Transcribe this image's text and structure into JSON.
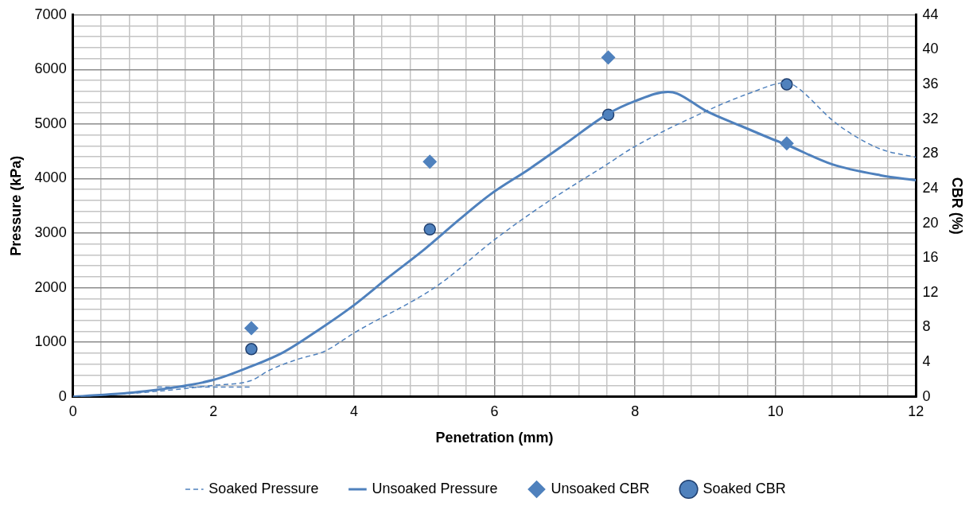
{
  "chart_data": {
    "type": "line",
    "xlabel": "Penetration (mm)",
    "ylabel": "Pressure (kPa)",
    "y2label": "CBR (%)",
    "xlim": [
      0,
      12
    ],
    "xticks": [
      0,
      {
        "value": 0.4,
        "label": null
      },
      {
        "value": 0.8,
        "label": null
      },
      {
        "value": 1.2,
        "label": null
      },
      {
        "value": 1.6,
        "label": null
      },
      2,
      {
        "value": 2.4,
        "label": null
      },
      {
        "value": 2.8,
        "label": null
      },
      {
        "value": 3.2,
        "label": null
      },
      {
        "value": 3.6,
        "label": null
      },
      4,
      {
        "value": 4.4,
        "label": null
      },
      {
        "value": 4.8,
        "label": null
      },
      {
        "value": 5.2,
        "label": null
      },
      {
        "value": 5.6,
        "label": null
      },
      6,
      {
        "value": 6.4,
        "label": null
      },
      {
        "value": 6.8,
        "label": null
      },
      {
        "value": 7.2,
        "label": null
      },
      {
        "value": 7.6,
        "label": null
      },
      8,
      {
        "value": 8.4,
        "label": null
      },
      {
        "value": 8.8,
        "label": null
      },
      {
        "value": 9.2,
        "label": null
      },
      {
        "value": 9.6,
        "label": null
      },
      10,
      {
        "value": 10.4,
        "label": null
      },
      {
        "value": 10.8,
        "label": null
      },
      {
        "value": 11.2,
        "label": null
      },
      {
        "value": 11.6,
        "label": null
      },
      12
    ],
    "ylim": [
      0,
      7000
    ],
    "yticks": [
      0,
      {
        "value": 200,
        "label": null
      },
      {
        "value": 400,
        "label": null
      },
      {
        "value": 600,
        "label": null
      },
      {
        "value": 800,
        "label": null
      },
      1000,
      {
        "value": 1200,
        "label": null
      },
      {
        "value": 1400,
        "label": null
      },
      {
        "value": 1600,
        "label": null
      },
      {
        "value": 1800,
        "label": null
      },
      2000,
      {
        "value": 2200,
        "label": null
      },
      {
        "value": 2400,
        "label": null
      },
      {
        "value": 2600,
        "label": null
      },
      {
        "value": 2800,
        "label": null
      },
      3000,
      {
        "value": 3200,
        "label": null
      },
      {
        "value": 3400,
        "label": null
      },
      {
        "value": 3600,
        "label": null
      },
      {
        "value": 3800,
        "label": null
      },
      4000,
      {
        "value": 4200,
        "label": null
      },
      {
        "value": 4400,
        "label": null
      },
      {
        "value": 4600,
        "label": null
      },
      {
        "value": 4800,
        "label": null
      },
      5000,
      {
        "value": 5200,
        "label": null
      },
      {
        "value": 5400,
        "label": null
      },
      {
        "value": 5600,
        "label": null
      },
      {
        "value": 5800,
        "label": null
      },
      6000,
      {
        "value": 6200,
        "label": null
      },
      {
        "value": 6400,
        "label": null
      },
      {
        "value": 6600,
        "label": null
      },
      {
        "value": 6800,
        "label": null
      },
      7000
    ],
    "y2lim": [
      0,
      44
    ],
    "y2ticks": [
      0,
      4,
      8,
      12,
      16,
      20,
      24,
      28,
      32,
      36,
      40,
      44
    ],
    "grid": true,
    "legend": "bottom",
    "series": [
      {
        "name": "Soaked Pressure",
        "type": "line",
        "line_style": "dashed",
        "marker": "none",
        "color": "#4f81bd",
        "x": [
          0,
          1,
          2,
          2.54,
          2.8,
          3.2,
          3.59,
          4,
          5.18,
          6,
          6.73,
          7.6,
          8,
          9,
          9.62,
          10.16,
          10.3,
          10.81,
          11.08,
          11.5,
          12
        ],
        "values": [
          0,
          80,
          210,
          300,
          490,
          690,
          840,
          1170,
          2030,
          2880,
          3550,
          4260,
          4590,
          5230,
          5560,
          5760,
          5680,
          5070,
          4820,
          4540,
          4390
        ]
      },
      {
        "name": "Unsoaked Pressure",
        "type": "line",
        "line_style": "solid",
        "marker": "none",
        "color": "#4f81bd",
        "x": [
          0,
          1,
          2,
          2.54,
          3,
          3.5,
          4,
          4.5,
          5,
          5.5,
          5.93,
          6.5,
          7,
          7.62,
          8,
          8.47,
          8.6,
          9,
          9.5,
          10,
          10.16,
          10.81,
          11.5,
          12
        ],
        "values": [
          0,
          100,
          310,
          560,
          820,
          1230,
          1680,
          2200,
          2700,
          3250,
          3700,
          4180,
          4630,
          5190,
          5420,
          5590,
          5560,
          5250,
          4970,
          4700,
          4620,
          4260,
          4060,
          3970
        ]
      },
      {
        "name": "Unsoaked CBR",
        "type": "scatter",
        "axis": "y2",
        "marker": "diamond",
        "color": "#4f81bd",
        "x": [
          2.54,
          5.08,
          7.62,
          10.16
        ],
        "values": [
          7.9,
          27.1,
          39.1,
          29.2
        ]
      },
      {
        "name": "Soaked CBR",
        "type": "scatter",
        "axis": "y2",
        "marker": "circle",
        "color": "#4f81bd",
        "x": [
          2.54,
          5.08,
          7.62,
          10.16
        ],
        "values": [
          5.5,
          19.3,
          32.5,
          36.0
        ]
      },
      {
        "type": "line",
        "line_style": "dashed",
        "marker": "none",
        "color": "#4f81bd",
        "x": [
          1.2,
          2.54
        ],
        "values": [
          180,
          180
        ]
      }
    ]
  }
}
